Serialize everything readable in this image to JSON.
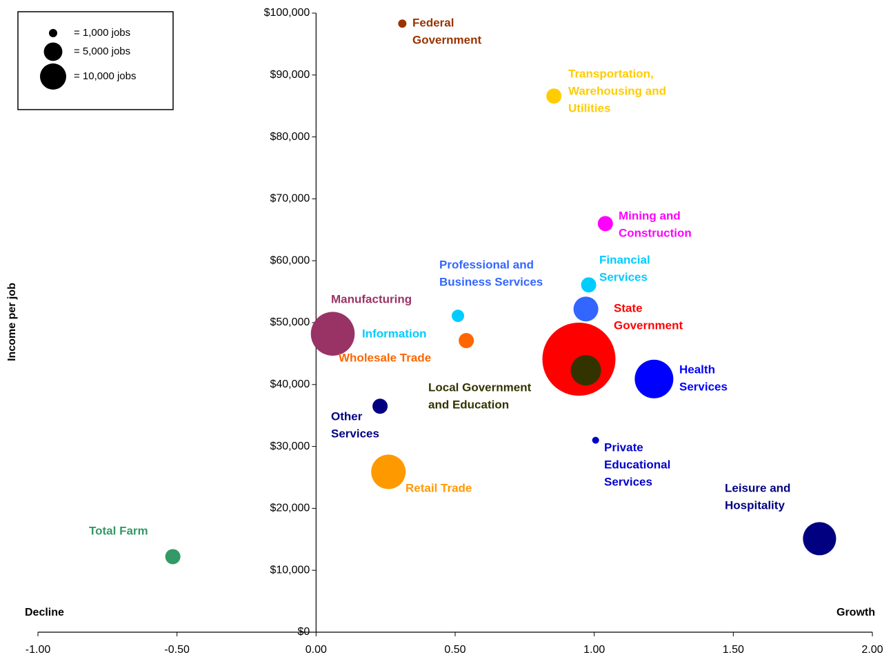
{
  "chart_data": {
    "type": "bubble",
    "y_label": "Income per job",
    "left_note": "Decline",
    "right_note": "Growth",
    "xlim": [
      -1,
      2
    ],
    "ylim": [
      0,
      100000
    ],
    "xticks": [
      {
        "value": -1,
        "label": "-1.00"
      },
      {
        "value": -0.5,
        "label": "-0.50"
      },
      {
        "value": 0,
        "label": "0.00"
      },
      {
        "value": 0.5,
        "label": "0.50"
      },
      {
        "value": 1,
        "label": "1.00"
      },
      {
        "value": 1.5,
        "label": "1.50"
      },
      {
        "value": 2,
        "label": "2.00"
      }
    ],
    "yticks": [
      {
        "value": 0,
        "label": "$0"
      },
      {
        "value": 10000,
        "label": "$10,000"
      },
      {
        "value": 20000,
        "label": "$20,000"
      },
      {
        "value": 30000,
        "label": "$30,000"
      },
      {
        "value": 40000,
        "label": "$40,000"
      },
      {
        "value": 50000,
        "label": "$50,000"
      },
      {
        "value": 60000,
        "label": "$60,000"
      },
      {
        "value": 70000,
        "label": "$70,000"
      },
      {
        "value": 80000,
        "label": "$80,000"
      },
      {
        "value": 90000,
        "label": "$90,000"
      },
      {
        "value": 100000,
        "label": "$100,000"
      }
    ],
    "size_legend": [
      {
        "size": 1000,
        "label": "= 1,000 jobs"
      },
      {
        "size": 5000,
        "label": "= 5,000 jobs"
      },
      {
        "size": 10000,
        "label": "= 10,000 jobs"
      }
    ],
    "series": [
      {
        "label_lines": [
          "Federal",
          "Government"
        ],
        "color": "#993300",
        "x": 0.31,
        "y": 98300,
        "size": 1000
      },
      {
        "label_lines": [
          "Transportation,",
          "Warehousing and",
          "Utilities"
        ],
        "color": "#ffcc00",
        "x": 0.855,
        "y": 86600,
        "size": 3350
      },
      {
        "label_lines": [
          "Mining and",
          "Construction"
        ],
        "color": "#ff00ff",
        "x": 1.04,
        "y": 66000,
        "size": 3350
      },
      {
        "label_lines": [
          "Financial",
          "Services"
        ],
        "color": "#00ccff",
        "x": 0.98,
        "y": 56100,
        "size": 3350
      },
      {
        "label_lines": [
          "Professional and",
          "Business Services"
        ],
        "color": "#3366ff",
        "x": 0.97,
        "y": 52200,
        "size": 9000
      },
      {
        "label_lines": [
          "Information"
        ],
        "color": "#00ccff",
        "x": 0.51,
        "y": 51100,
        "size": 2240
      },
      {
        "label_lines": [
          "Manufacturing"
        ],
        "color": "#993366",
        "x": 0.06,
        "y": 48200,
        "size": 28000
      },
      {
        "label_lines": [
          "Wholesale Trade"
        ],
        "color": "#ff6600",
        "x": 0.54,
        "y": 47100,
        "size": 3350
      },
      {
        "label_lines": [
          "State",
          "Government"
        ],
        "color": "#ff0000",
        "x": 0.945,
        "y": 44100,
        "size": 77800
      },
      {
        "label_lines": [
          "Local Government",
          "and Education"
        ],
        "color": "#333300",
        "x": 0.97,
        "y": 42300,
        "size": 13400
      },
      {
        "label_lines": [
          "Health",
          "Services"
        ],
        "color": "#0000ff",
        "x": 1.215,
        "y": 40900,
        "size": 21700
      },
      {
        "label_lines": [
          "Other",
          "Services"
        ],
        "color": "#000080",
        "x": 0.23,
        "y": 36500,
        "size": 3350
      },
      {
        "label_lines": [
          "Private",
          "Educational",
          "Services"
        ],
        "color": "#0000cc",
        "x": 1.005,
        "y": 31000,
        "size": 700
      },
      {
        "label_lines": [
          "Retail Trade"
        ],
        "color": "#ff9900",
        "x": 0.26,
        "y": 25900,
        "size": 17300
      },
      {
        "label_lines": [
          "Leisure and",
          "Hospitality"
        ],
        "color": "#000080",
        "x": 1.81,
        "y": 15100,
        "size": 16000
      },
      {
        "label_lines": [
          "Total Farm"
        ],
        "color": "#339966",
        "x": -0.515,
        "y": 12200,
        "size": 3350
      }
    ]
  }
}
